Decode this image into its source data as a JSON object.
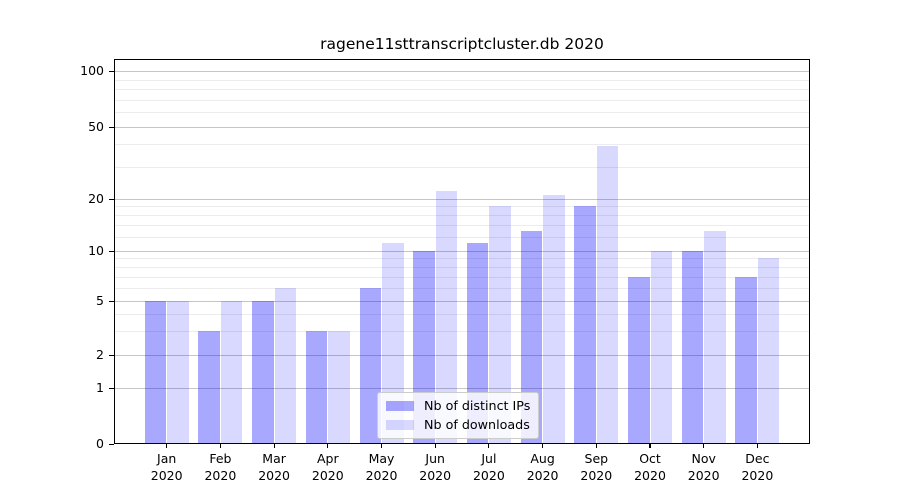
{
  "title": "ragene11sttranscriptcluster.db 2020",
  "chart_data": {
    "type": "bar",
    "title": "ragene11sttranscriptcluster.db 2020",
    "categories": [
      "Jan 2020",
      "Feb 2020",
      "Mar 2020",
      "Apr 2020",
      "May 2020",
      "Jun 2020",
      "Jul 2020",
      "Aug 2020",
      "Sep 2020",
      "Oct 2020",
      "Nov 2020",
      "Dec 2020"
    ],
    "x_tick_months": [
      "Jan",
      "Feb",
      "Mar",
      "Apr",
      "May",
      "Jun",
      "Jul",
      "Aug",
      "Sep",
      "Oct",
      "Nov",
      "Dec"
    ],
    "x_tick_year": "2020",
    "series": [
      {
        "name": "Nb of distinct IPs",
        "color": "#a8a8fa",
        "fill": "rgba(0,0,255,0.34)",
        "values": [
          5,
          3,
          5,
          3,
          6,
          10,
          11,
          13,
          18,
          7,
          10,
          7
        ]
      },
      {
        "name": "Nb of downloads",
        "color": "#d9d9fa",
        "fill": "rgba(0,0,255,0.15)",
        "values": [
          5,
          5,
          6,
          3,
          11,
          22,
          18,
          21,
          39,
          10,
          13,
          9
        ]
      }
    ],
    "y_ticks": [
      0,
      1,
      2,
      5,
      10,
      20,
      50,
      100
    ],
    "y_tick_labels": [
      "0",
      "1",
      "2",
      "5",
      "10",
      "20",
      "50",
      "100"
    ],
    "y_scale": "log-like",
    "ylim": [
      0,
      115
    ],
    "grid": true,
    "legend_position": "lower-center",
    "colors": {
      "major_gridline": "#c6c6c6",
      "minor_gridline": "#ececec",
      "axis": "#000000",
      "text": "#000000"
    }
  }
}
